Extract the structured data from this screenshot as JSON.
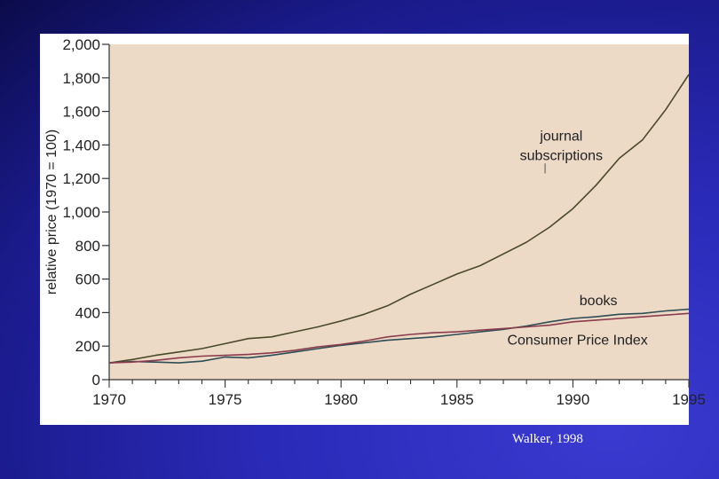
{
  "chart_data": {
    "type": "line",
    "title": "",
    "xlabel": "",
    "ylabel": "relative price (1970 = 100)",
    "xlim": [
      1970,
      1995
    ],
    "ylim": [
      0,
      2000
    ],
    "x_ticks": [
      "1970",
      "1975",
      "1980",
      "1985",
      "1990",
      "1995"
    ],
    "y_ticks": [
      "0",
      "200",
      "400",
      "600",
      "800",
      "1,000",
      "1,200",
      "1,400",
      "1,600",
      "1,800",
      "2,000"
    ],
    "grid": false,
    "legend": "none",
    "x": [
      1970,
      1971,
      1972,
      1973,
      1974,
      1975,
      1976,
      1977,
      1978,
      1979,
      1980,
      1981,
      1982,
      1983,
      1984,
      1985,
      1986,
      1987,
      1988,
      1989,
      1990,
      1991,
      1992,
      1993,
      1994,
      1995
    ],
    "series": [
      {
        "name": "journal subscriptions",
        "color": "#4a4a2a",
        "values": [
          100,
          120,
          145,
          165,
          185,
          215,
          245,
          255,
          285,
          315,
          350,
          390,
          440,
          510,
          570,
          630,
          680,
          750,
          820,
          910,
          1020,
          1160,
          1320,
          1430,
          1610,
          1820
        ]
      },
      {
        "name": "books",
        "color": "#2e4d55",
        "values": [
          100,
          108,
          105,
          100,
          110,
          135,
          130,
          145,
          165,
          185,
          205,
          220,
          235,
          245,
          255,
          270,
          285,
          300,
          320,
          345,
          365,
          375,
          390,
          395,
          410,
          420
        ]
      },
      {
        "name": "Consumer Price Index",
        "color": "#8a3c4c",
        "values": [
          100,
          105,
          115,
          130,
          140,
          145,
          150,
          160,
          175,
          195,
          210,
          230,
          255,
          270,
          280,
          285,
          295,
          305,
          315,
          325,
          345,
          355,
          365,
          375,
          385,
          395
        ]
      }
    ],
    "annotations": [
      {
        "text": "journal",
        "series": "journal subscriptions"
      },
      {
        "text": "subscriptions",
        "series": "journal subscriptions"
      },
      {
        "text": "books",
        "series": "books"
      },
      {
        "text": "Consumer Price Index",
        "series": "Consumer Price Index"
      }
    ],
    "plot_background": "#ecd9c6"
  },
  "citation": "Walker, 1998"
}
